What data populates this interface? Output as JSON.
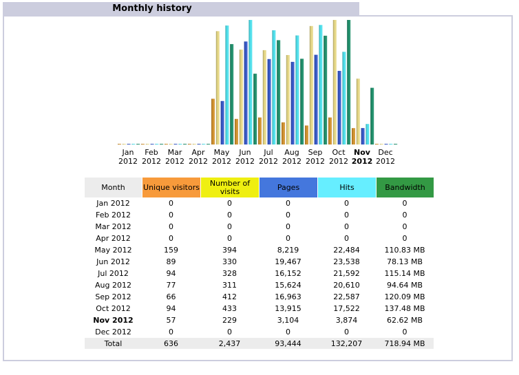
{
  "title": "Monthly history",
  "colors": {
    "unique": "#f79a3b",
    "visits": "#efef11",
    "pages": "#4477dd",
    "hits": "#66eeff",
    "bandwidth": "#339944"
  },
  "table": {
    "headers": [
      "Month",
      "Unique visitors",
      "Number of visits",
      "Pages",
      "Hits",
      "Bandwidth"
    ],
    "rows": [
      [
        "Jan 2012",
        "0",
        "0",
        "0",
        "0",
        "0"
      ],
      [
        "Feb 2012",
        "0",
        "0",
        "0",
        "0",
        "0"
      ],
      [
        "Mar 2012",
        "0",
        "0",
        "0",
        "0",
        "0"
      ],
      [
        "Apr 2012",
        "0",
        "0",
        "0",
        "0",
        "0"
      ],
      [
        "May 2012",
        "159",
        "394",
        "8,219",
        "22,484",
        "110.83 MB"
      ],
      [
        "Jun 2012",
        "89",
        "330",
        "19,467",
        "23,538",
        "78.13 MB"
      ],
      [
        "Jul 2012",
        "94",
        "328",
        "16,152",
        "21,592",
        "115.14 MB"
      ],
      [
        "Aug 2012",
        "77",
        "311",
        "15,624",
        "20,610",
        "94.64 MB"
      ],
      [
        "Sep 2012",
        "66",
        "412",
        "16,963",
        "22,587",
        "120.09 MB"
      ],
      [
        "Oct 2012",
        "94",
        "433",
        "13,915",
        "17,522",
        "137.48 MB"
      ],
      [
        "Nov 2012",
        "57",
        "229",
        "3,104",
        "3,874",
        "62.62 MB"
      ],
      [
        "Dec 2012",
        "0",
        "0",
        "0",
        "0",
        "0"
      ]
    ],
    "current_month": "Nov 2012",
    "total": [
      "Total",
      "636",
      "2,437",
      "93,444",
      "132,207",
      "718.94 MB"
    ]
  },
  "chart_data": {
    "type": "bar",
    "categories": [
      "Jan",
      "Feb",
      "Mar",
      "Apr",
      "May",
      "Jun",
      "Jul",
      "Aug",
      "Sep",
      "Oct",
      "Nov",
      "Dec"
    ],
    "category_years": [
      "2012",
      "2012",
      "2012",
      "2012",
      "2012",
      "2012",
      "2012",
      "2012",
      "2012",
      "2012",
      "2012",
      "2012"
    ],
    "highlight_category": "Nov",
    "series": [
      {
        "name": "Unique visitors",
        "values": [
          0,
          0,
          0,
          0,
          159,
          89,
          94,
          77,
          66,
          94,
          57,
          0
        ]
      },
      {
        "name": "Number of visits",
        "values": [
          0,
          0,
          0,
          0,
          394,
          330,
          328,
          311,
          412,
          433,
          229,
          0
        ]
      },
      {
        "name": "Pages",
        "values": [
          0,
          0,
          0,
          0,
          8219,
          19467,
          16152,
          15624,
          16963,
          13915,
          3104,
          0
        ]
      },
      {
        "name": "Hits",
        "values": [
          0,
          0,
          0,
          0,
          22484,
          23538,
          21592,
          20610,
          22587,
          17522,
          3874,
          0
        ]
      },
      {
        "name": "Bandwidth",
        "values": [
          0,
          0,
          0,
          0,
          110.83,
          78.13,
          115.14,
          94.64,
          120.09,
          137.48,
          62.62,
          0
        ]
      }
    ],
    "scales": {
      "Unique visitors": 433,
      "Number of visits": 433,
      "Pages": 23538,
      "Hits": 23538,
      "Bandwidth": 137.48
    },
    "bar_colors": [
      "#d2922f",
      "#e6d886",
      "#3658c8",
      "#4fe0ec",
      "#1e8f6a"
    ],
    "grid": false,
    "legend": "none"
  }
}
